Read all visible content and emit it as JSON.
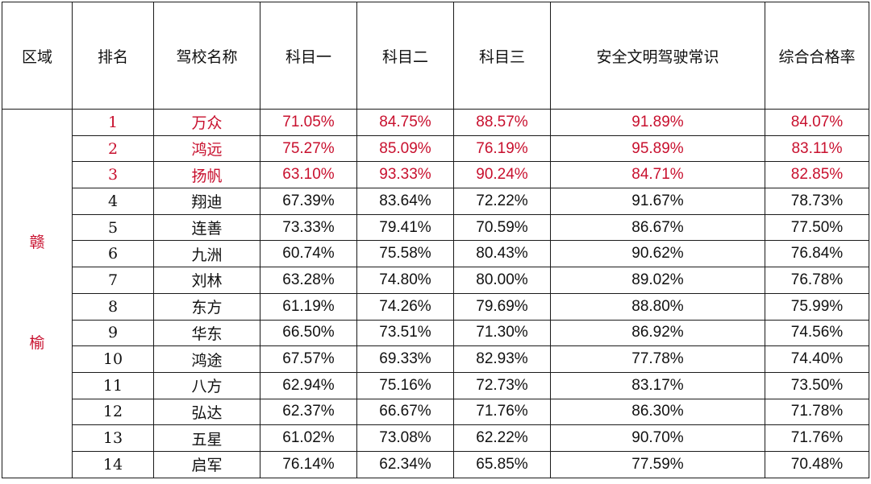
{
  "table": {
    "headers": [
      "区域",
      "排名",
      "驾校名称",
      "科目一",
      "科目二",
      "科目三",
      "安全文明驾驶常识",
      "综合合格率"
    ],
    "region": [
      "赣",
      "榆"
    ],
    "rows": [
      {
        "rank": "1",
        "school": "万众",
        "k1": "71.05%",
        "k2": "84.75%",
        "k3": "88.57%",
        "safety": "91.89%",
        "overall": "84.07%",
        "highlight": true
      },
      {
        "rank": "2",
        "school": "鸿远",
        "k1": "75.27%",
        "k2": "85.09%",
        "k3": "76.19%",
        "safety": "95.89%",
        "overall": "83.11%",
        "highlight": true
      },
      {
        "rank": "3",
        "school": "扬帆",
        "k1": "63.10%",
        "k2": "93.33%",
        "k3": "90.24%",
        "safety": "84.71%",
        "overall": "82.85%",
        "highlight": true
      },
      {
        "rank": "4",
        "school": "翔迪",
        "k1": "67.39%",
        "k2": "83.64%",
        "k3": "72.22%",
        "safety": "91.67%",
        "overall": "78.73%",
        "highlight": false
      },
      {
        "rank": "5",
        "school": "连善",
        "k1": "73.33%",
        "k2": "79.41%",
        "k3": "70.59%",
        "safety": "86.67%",
        "overall": "77.50%",
        "highlight": false
      },
      {
        "rank": "6",
        "school": "九洲",
        "k1": "60.74%",
        "k2": "75.58%",
        "k3": "80.43%",
        "safety": "90.62%",
        "overall": "76.84%",
        "highlight": false
      },
      {
        "rank": "7",
        "school": "刘林",
        "k1": "63.28%",
        "k2": "74.80%",
        "k3": "80.00%",
        "safety": "89.02%",
        "overall": "76.78%",
        "highlight": false
      },
      {
        "rank": "8",
        "school": "东方",
        "k1": "61.19%",
        "k2": "74.26%",
        "k3": "79.69%",
        "safety": "88.80%",
        "overall": "75.99%",
        "highlight": false
      },
      {
        "rank": "9",
        "school": "华东",
        "k1": "66.50%",
        "k2": "73.51%",
        "k3": "71.30%",
        "safety": "86.92%",
        "overall": "74.56%",
        "highlight": false
      },
      {
        "rank": "10",
        "school": "鸿途",
        "k1": "67.57%",
        "k2": "69.33%",
        "k3": "82.93%",
        "safety": "77.78%",
        "overall": "74.40%",
        "highlight": false
      },
      {
        "rank": "11",
        "school": "八方",
        "k1": "62.94%",
        "k2": "75.16%",
        "k3": "72.73%",
        "safety": "83.17%",
        "overall": "73.50%",
        "highlight": false
      },
      {
        "rank": "12",
        "school": "弘达",
        "k1": "62.37%",
        "k2": "66.67%",
        "k3": "71.76%",
        "safety": "86.30%",
        "overall": "71.78%",
        "highlight": false
      },
      {
        "rank": "13",
        "school": "五星",
        "k1": "61.02%",
        "k2": "73.08%",
        "k3": "62.22%",
        "safety": "90.70%",
        "overall": "71.76%",
        "highlight": false
      },
      {
        "rank": "14",
        "school": "启军",
        "k1": "76.14%",
        "k2": "62.34%",
        "k3": "65.85%",
        "safety": "77.59%",
        "overall": "70.48%",
        "highlight": false
      }
    ]
  },
  "colors": {
    "highlight_text": "#c8102e",
    "normal_text": "#111111",
    "border": "#1a1a1a"
  }
}
